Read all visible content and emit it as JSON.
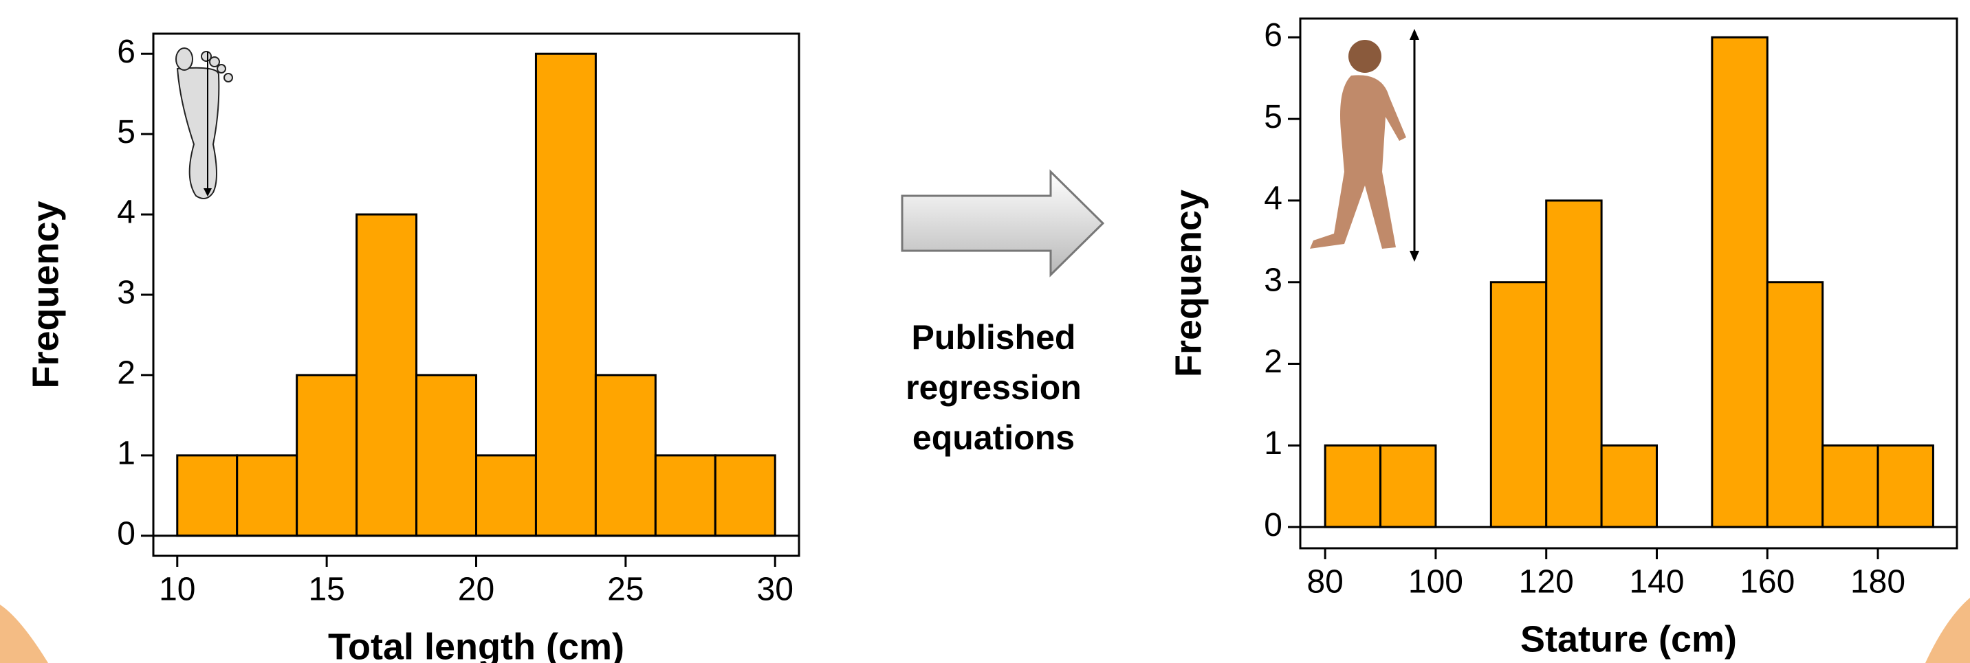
{
  "chart_data": [
    {
      "type": "histogram",
      "xlabel": "Total length (cm)",
      "ylabel": "Frequency",
      "bins": [
        10,
        12,
        14,
        16,
        18,
        20,
        22,
        24,
        26,
        28,
        30
      ],
      "values": [
        1,
        1,
        2,
        4,
        2,
        1,
        6,
        2,
        1,
        1
      ],
      "color": "#ffa500",
      "xlim": [
        9.2,
        30.8
      ],
      "ylim": [
        -0.25,
        6.25
      ],
      "xticks": [
        10,
        15,
        20,
        25,
        30
      ],
      "yticks": [
        0,
        1,
        2,
        3,
        4,
        5,
        6
      ],
      "grid": false
    },
    {
      "type": "histogram",
      "xlabel": "Stature (cm)",
      "ylabel": "Frequency",
      "bins": [
        80,
        90,
        100,
        110,
        120,
        130,
        140,
        150,
        160,
        170,
        180,
        190
      ],
      "values": [
        1,
        1,
        0,
        3,
        4,
        1,
        0,
        6,
        3,
        1,
        1
      ],
      "color": "#ffa500",
      "xlim": [
        75.5,
        194.3
      ],
      "ylim": [
        -0.26,
        6.23
      ],
      "xticks": [
        80,
        100,
        120,
        140,
        160,
        180
      ],
      "yticks": [
        0,
        1,
        2,
        3,
        4,
        5,
        6
      ],
      "grid": false
    }
  ],
  "annotation": [
    "Published",
    "regression",
    "equations"
  ]
}
